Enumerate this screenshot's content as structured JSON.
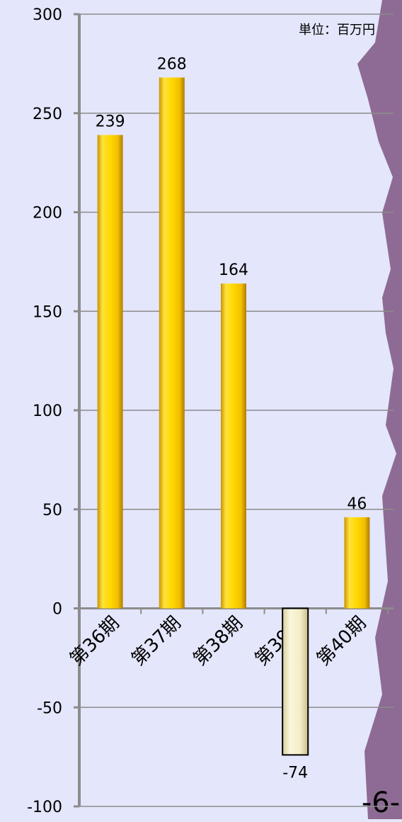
{
  "chart_data": {
    "type": "bar",
    "unit_label": "単位：百万円",
    "page_number": "-6-",
    "categories": [
      "第36期",
      "第37期",
      "第38期",
      "第39期",
      "第40期"
    ],
    "values": [
      239,
      268,
      164,
      -74,
      46
    ],
    "color": "#f2c500",
    "negative_color": "#f3edc6",
    "ylim": [
      -100,
      300
    ],
    "yticks": [
      -100,
      -50,
      0,
      50,
      100,
      150,
      200,
      250,
      300
    ],
    "grid": true
  }
}
